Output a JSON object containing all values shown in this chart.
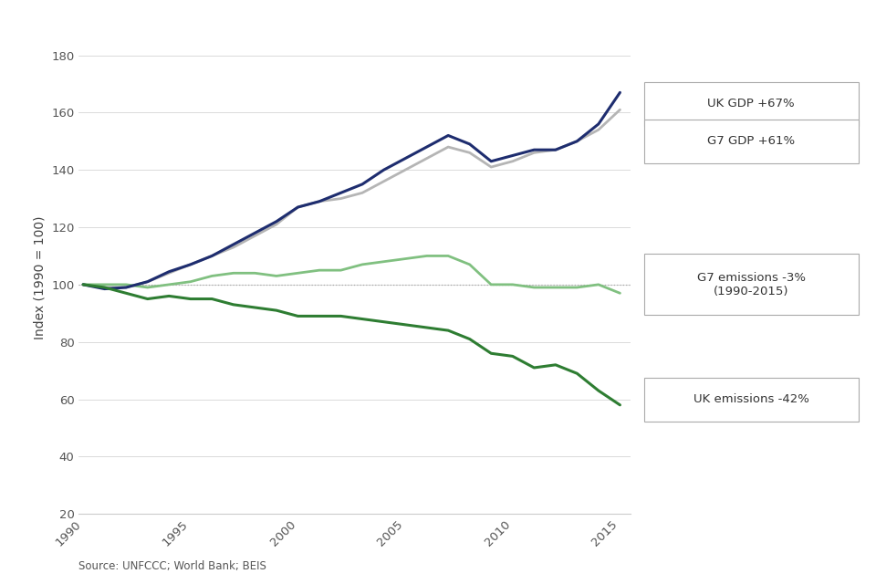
{
  "years": [
    1990,
    1991,
    1992,
    1993,
    1994,
    1995,
    1996,
    1997,
    1998,
    1999,
    2000,
    2001,
    2002,
    2003,
    2004,
    2005,
    2006,
    2007,
    2008,
    2009,
    2010,
    2011,
    2012,
    2013,
    2014,
    2015
  ],
  "uk_gdp": [
    100,
    98.5,
    99,
    101,
    104.5,
    107,
    110,
    114,
    118,
    122,
    127,
    129,
    132,
    135,
    140,
    144,
    148,
    152,
    149,
    143,
    145,
    147,
    147,
    150,
    156,
    167
  ],
  "g7_gdp": [
    100,
    99,
    99,
    101,
    104,
    107,
    110,
    113,
    117,
    121,
    127,
    129,
    130,
    132,
    136,
    140,
    144,
    148,
    146,
    141,
    143,
    146,
    147,
    150,
    154,
    161
  ],
  "uk_emissions": [
    100,
    99,
    97,
    95,
    96,
    95,
    95,
    93,
    92,
    91,
    89,
    89,
    89,
    88,
    87,
    86,
    85,
    84,
    81,
    76,
    75,
    71,
    72,
    69,
    63,
    58
  ],
  "g7_emissions": [
    100,
    100,
    100,
    99,
    100,
    101,
    103,
    104,
    104,
    103,
    104,
    105,
    105,
    107,
    108,
    109,
    110,
    110,
    107,
    100,
    100,
    99,
    99,
    99,
    100,
    97
  ],
  "uk_gdp_color": "#1e2d6f",
  "g7_gdp_color": "#b5b5b5",
  "uk_emissions_color": "#2e7d32",
  "g7_emissions_color": "#80c080",
  "dashed_line_color": "#aaaaaa",
  "ylabel": "Index (1990 = 100)",
  "ylim": [
    20,
    185
  ],
  "yticks": [
    20,
    40,
    60,
    80,
    100,
    120,
    140,
    160,
    180
  ],
  "xlim": [
    1989.8,
    2015.5
  ],
  "xticks": [
    1990,
    1995,
    2000,
    2005,
    2010,
    2015
  ],
  "source_text": "Source: UNFCCC; World Bank; BEIS",
  "legend_labels": [
    "UK GDP +67%",
    "G7 GDP +61%",
    "G7 emissions -3%\n(1990-2015)",
    "UK emissions -42%"
  ],
  "background_color": "#ffffff",
  "grid_color": "#cccccc",
  "spine_color": "#cccccc"
}
